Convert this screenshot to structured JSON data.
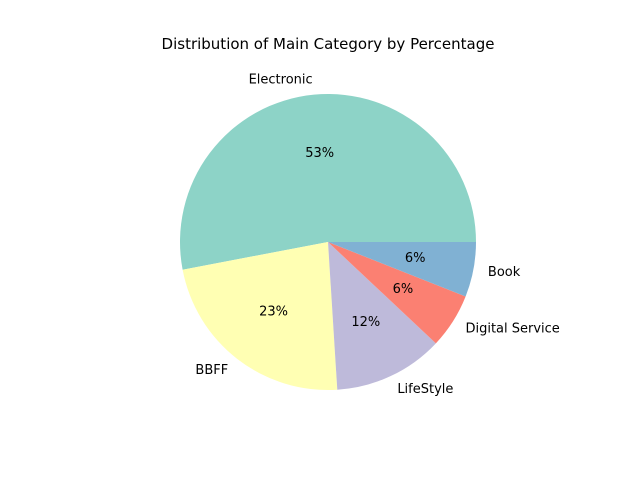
{
  "chart_data": {
    "type": "pie",
    "title": "Distribution of Main Category by Percentage",
    "slices": [
      {
        "label": "Electronic",
        "value": 53,
        "pct_label": "53%",
        "color": "#8dd3c7"
      },
      {
        "label": "BBFF",
        "value": 23,
        "pct_label": "23%",
        "color": "#ffffb3"
      },
      {
        "label": "LifeStyle",
        "value": 12,
        "pct_label": "12%",
        "color": "#bebada"
      },
      {
        "label": "Digital Service",
        "value": 6,
        "pct_label": "6%",
        "color": "#fb8072"
      },
      {
        "label": "Book",
        "value": 6,
        "pct_label": "6%",
        "color": "#80b1d3"
      }
    ],
    "start_angle_deg": 0,
    "direction": "counterclockwise",
    "legend": "none"
  }
}
